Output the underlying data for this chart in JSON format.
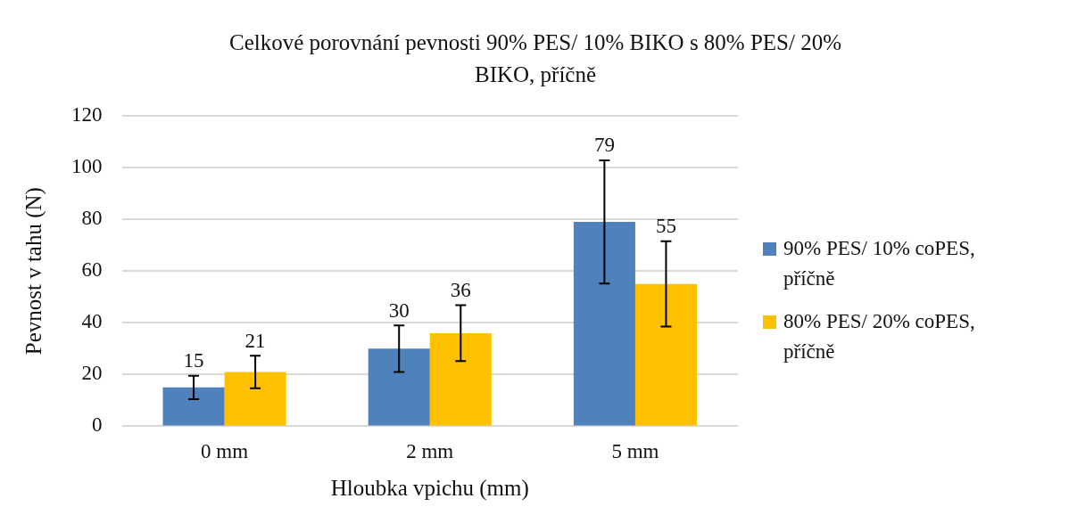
{
  "chart_data": {
    "type": "bar",
    "title": "Celkové porovnání pevnosti 90% PES/ 10% BIKO s 80% PES/ 20% BIKO, příčně",
    "xlabel": "Hloubka vpichu (mm)",
    "ylabel": "Pevnost v tahu (N)",
    "categories": [
      "0 mm",
      "2 mm",
      "5 mm"
    ],
    "series": [
      {
        "name": "90% PES/ 10% coPES, příčně",
        "color": "#4f81bd",
        "values": [
          15,
          30,
          79
        ],
        "errors": [
          4.5,
          9,
          23.8
        ]
      },
      {
        "name": "80% PES/ 20% coPES, příčně",
        "color": "#ffc000",
        "values": [
          21,
          36,
          55
        ],
        "errors": [
          6.3,
          10.8,
          16.5
        ]
      }
    ],
    "ylim": [
      0,
      120
    ],
    "yticks": [
      0,
      20,
      40,
      60,
      80,
      100,
      120
    ],
    "grid": "y",
    "legend": "right",
    "data_labels": true
  }
}
